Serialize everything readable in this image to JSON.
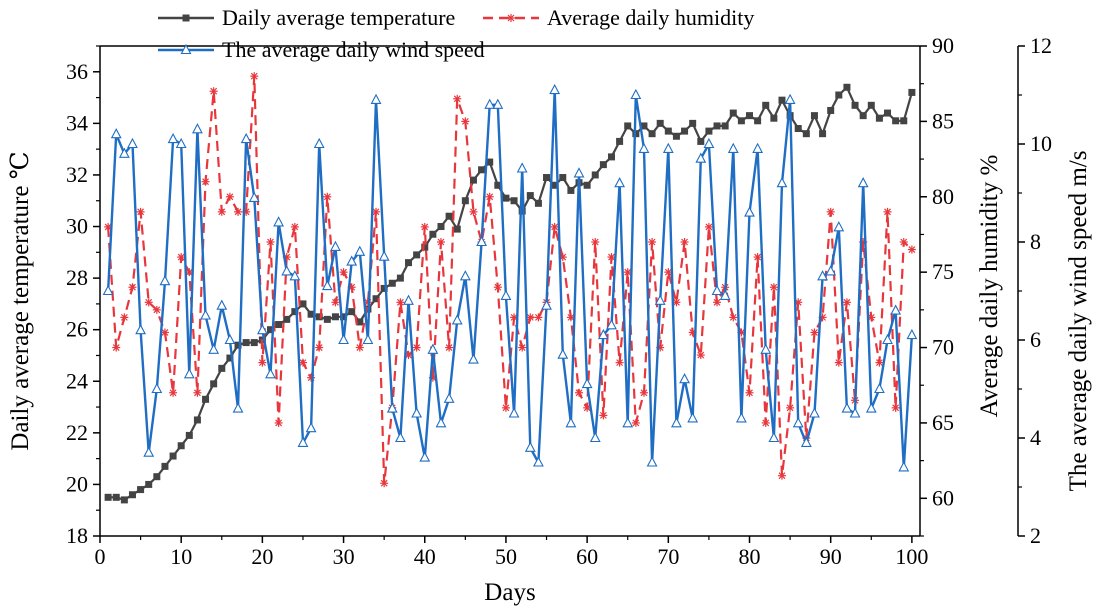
{
  "chart_data": {
    "type": "line",
    "title": "",
    "xlabel": "Days",
    "xlim": [
      0,
      101
    ],
    "x_ticks": [
      0,
      10,
      20,
      30,
      40,
      50,
      60,
      70,
      80,
      90,
      100
    ],
    "legend_position": "top",
    "grid": false,
    "axes": {
      "left": {
        "label": "Daily average temperature ℃",
        "lim": [
          18,
          37
        ],
        "ticks": [
          18,
          20,
          22,
          24,
          26,
          28,
          30,
          32,
          34,
          36
        ]
      },
      "right1": {
        "label": "Average daily humidity %",
        "lim": [
          57.5,
          90
        ],
        "ticks": [
          60,
          65,
          70,
          75,
          80,
          85,
          90
        ]
      },
      "right2": {
        "label": "The average daily wind speed m/s",
        "lim": [
          2,
          12
        ],
        "ticks": [
          2,
          4,
          6,
          8,
          10,
          12
        ]
      }
    },
    "series": [
      {
        "name": "Daily average temperature",
        "axis": "left",
        "color": "#444444",
        "line_style": "solid",
        "marker": "square",
        "x": [
          1,
          2,
          3,
          4,
          5,
          6,
          7,
          8,
          9,
          10,
          11,
          12,
          13,
          14,
          15,
          16,
          17,
          18,
          19,
          20,
          21,
          22,
          23,
          24,
          25,
          26,
          27,
          28,
          29,
          30,
          31,
          32,
          33,
          34,
          35,
          36,
          37,
          38,
          39,
          40,
          41,
          42,
          43,
          44,
          45,
          46,
          47,
          48,
          49,
          50,
          51,
          52,
          53,
          54,
          55,
          56,
          57,
          58,
          59,
          60,
          61,
          62,
          63,
          64,
          65,
          66,
          67,
          68,
          69,
          70,
          71,
          72,
          73,
          74,
          75,
          76,
          77,
          78,
          79,
          80,
          81,
          82,
          83,
          84,
          85,
          86,
          87,
          88,
          89,
          90,
          91,
          92,
          93,
          94,
          95,
          96,
          97,
          98,
          99,
          100
        ],
        "values": [
          19.5,
          19.5,
          19.4,
          19.6,
          19.8,
          20.0,
          20.3,
          20.7,
          21.1,
          21.5,
          21.9,
          22.5,
          23.3,
          23.9,
          24.5,
          24.9,
          25.4,
          25.5,
          25.5,
          25.6,
          26.0,
          26.2,
          26.4,
          26.7,
          27.0,
          26.6,
          26.5,
          26.4,
          26.5,
          26.5,
          26.7,
          26.3,
          26.8,
          27.2,
          27.6,
          27.8,
          28.0,
          28.6,
          28.9,
          29.2,
          29.7,
          30.0,
          30.4,
          29.9,
          31.0,
          31.8,
          32.2,
          32.5,
          31.6,
          31.1,
          31.0,
          30.6,
          31.2,
          30.9,
          31.9,
          31.6,
          31.9,
          31.4,
          31.7,
          31.6,
          32.0,
          32.4,
          32.7,
          33.3,
          33.9,
          33.6,
          33.9,
          33.6,
          34.0,
          33.7,
          33.5,
          33.7,
          34.0,
          33.3,
          33.7,
          33.9,
          33.9,
          34.4,
          34.1,
          34.3,
          34.1,
          34.7,
          34.2,
          34.9,
          34.3,
          33.8,
          33.6,
          34.3,
          33.6,
          34.5,
          35.1,
          35.4,
          34.7,
          34.3,
          34.7,
          34.2,
          34.4,
          34.1,
          34.1,
          35.2
        ]
      },
      {
        "name": "Average daily humidity",
        "axis": "right1",
        "color": "#e8373c",
        "line_style": "dashed",
        "marker": "asterisk",
        "x": [
          1,
          2,
          3,
          4,
          5,
          6,
          7,
          8,
          9,
          10,
          11,
          12,
          13,
          14,
          15,
          16,
          17,
          18,
          19,
          20,
          21,
          22,
          23,
          24,
          25,
          26,
          27,
          28,
          29,
          30,
          31,
          32,
          33,
          34,
          35,
          36,
          37,
          38,
          39,
          40,
          41,
          42,
          43,
          44,
          45,
          46,
          47,
          48,
          49,
          50,
          51,
          52,
          53,
          54,
          55,
          56,
          57,
          58,
          59,
          60,
          61,
          62,
          63,
          64,
          65,
          66,
          67,
          68,
          69,
          70,
          71,
          72,
          73,
          74,
          75,
          76,
          77,
          78,
          79,
          80,
          81,
          82,
          83,
          84,
          85,
          86,
          87,
          88,
          89,
          90,
          91,
          92,
          93,
          94,
          95,
          96,
          97,
          98,
          99,
          100
        ],
        "values": [
          78.0,
          70.0,
          72.0,
          74.0,
          79.0,
          73.0,
          72.5,
          71.0,
          67.0,
          76.0,
          75.0,
          67.0,
          81.0,
          87.0,
          79.0,
          80.0,
          79.0,
          79.0,
          88.0,
          69.0,
          77.0,
          65.0,
          76.0,
          78.0,
          69.0,
          68.0,
          70.0,
          80.0,
          73.0,
          75.0,
          74.0,
          70.0,
          73.0,
          79.0,
          61.0,
          66.0,
          73.0,
          69.5,
          70.0,
          78.0,
          68.0,
          77.0,
          70.0,
          86.5,
          85.0,
          79.0,
          77.0,
          80.0,
          74.0,
          66.0,
          72.0,
          70.0,
          72.0,
          72.0,
          73.0,
          78.0,
          76.0,
          72.0,
          67.0,
          66.0,
          77.0,
          65.5,
          76.0,
          69.0,
          75.0,
          65.0,
          67.0,
          77.0,
          70.0,
          75.0,
          73.0,
          77.0,
          71.0,
          69.5,
          78.0,
          73.0,
          74.0,
          72.0,
          71.0,
          67.0,
          76.0,
          65.0,
          74.0,
          61.5,
          66.0,
          73.0,
          64.0,
          71.0,
          72.0,
          79.0,
          69.0,
          73.0,
          66.5,
          77.0,
          72.0,
          69.0,
          79.0,
          66.0,
          77.0,
          76.5
        ]
      },
      {
        "name": "The average daily wind speed",
        "axis": "right2",
        "color": "#1f6ec4",
        "line_style": "solid",
        "marker": "triangle",
        "x": [
          1,
          2,
          3,
          4,
          5,
          6,
          7,
          8,
          9,
          10,
          11,
          12,
          13,
          14,
          15,
          16,
          17,
          18,
          19,
          20,
          21,
          22,
          23,
          24,
          25,
          26,
          27,
          28,
          29,
          30,
          31,
          32,
          33,
          34,
          35,
          36,
          37,
          38,
          39,
          40,
          41,
          42,
          43,
          44,
          45,
          46,
          47,
          48,
          49,
          50,
          51,
          52,
          53,
          54,
          55,
          56,
          57,
          58,
          59,
          60,
          61,
          62,
          63,
          64,
          65,
          66,
          67,
          68,
          69,
          70,
          71,
          72,
          73,
          74,
          75,
          76,
          77,
          78,
          79,
          80,
          81,
          82,
          83,
          84,
          85,
          86,
          87,
          88,
          89,
          90,
          91,
          92,
          93,
          94,
          95,
          96,
          97,
          98,
          99,
          100
        ],
        "values": [
          7.0,
          10.2,
          9.8,
          10.0,
          6.2,
          3.7,
          5.0,
          7.2,
          10.1,
          10.0,
          5.3,
          10.3,
          6.5,
          5.8,
          6.7,
          6.0,
          4.6,
          10.1,
          8.9,
          6.2,
          5.3,
          8.4,
          7.4,
          7.3,
          3.9,
          4.2,
          10.0,
          7.1,
          7.9,
          6.0,
          7.6,
          7.8,
          6.0,
          10.9,
          7.7,
          4.6,
          4.0,
          6.8,
          4.5,
          3.6,
          5.8,
          4.3,
          4.8,
          6.4,
          7.3,
          5.6,
          8.0,
          10.8,
          10.8,
          6.9,
          4.5,
          9.5,
          3.8,
          3.5,
          6.7,
          11.1,
          5.7,
          4.3,
          9.4,
          5.1,
          4.0,
          6.1,
          6.3,
          9.2,
          4.3,
          11.0,
          9.9,
          3.5,
          6.8,
          9.9,
          4.3,
          5.2,
          4.4,
          9.7,
          10.0,
          7.0,
          6.9,
          9.9,
          4.4,
          8.6,
          9.9,
          5.8,
          4.0,
          9.2,
          10.9,
          4.3,
          3.9,
          4.5,
          7.3,
          7.4,
          8.3,
          4.6,
          4.5,
          9.2,
          4.6,
          5.0,
          6.0,
          6.6,
          3.4,
          6.1
        ]
      }
    ]
  }
}
